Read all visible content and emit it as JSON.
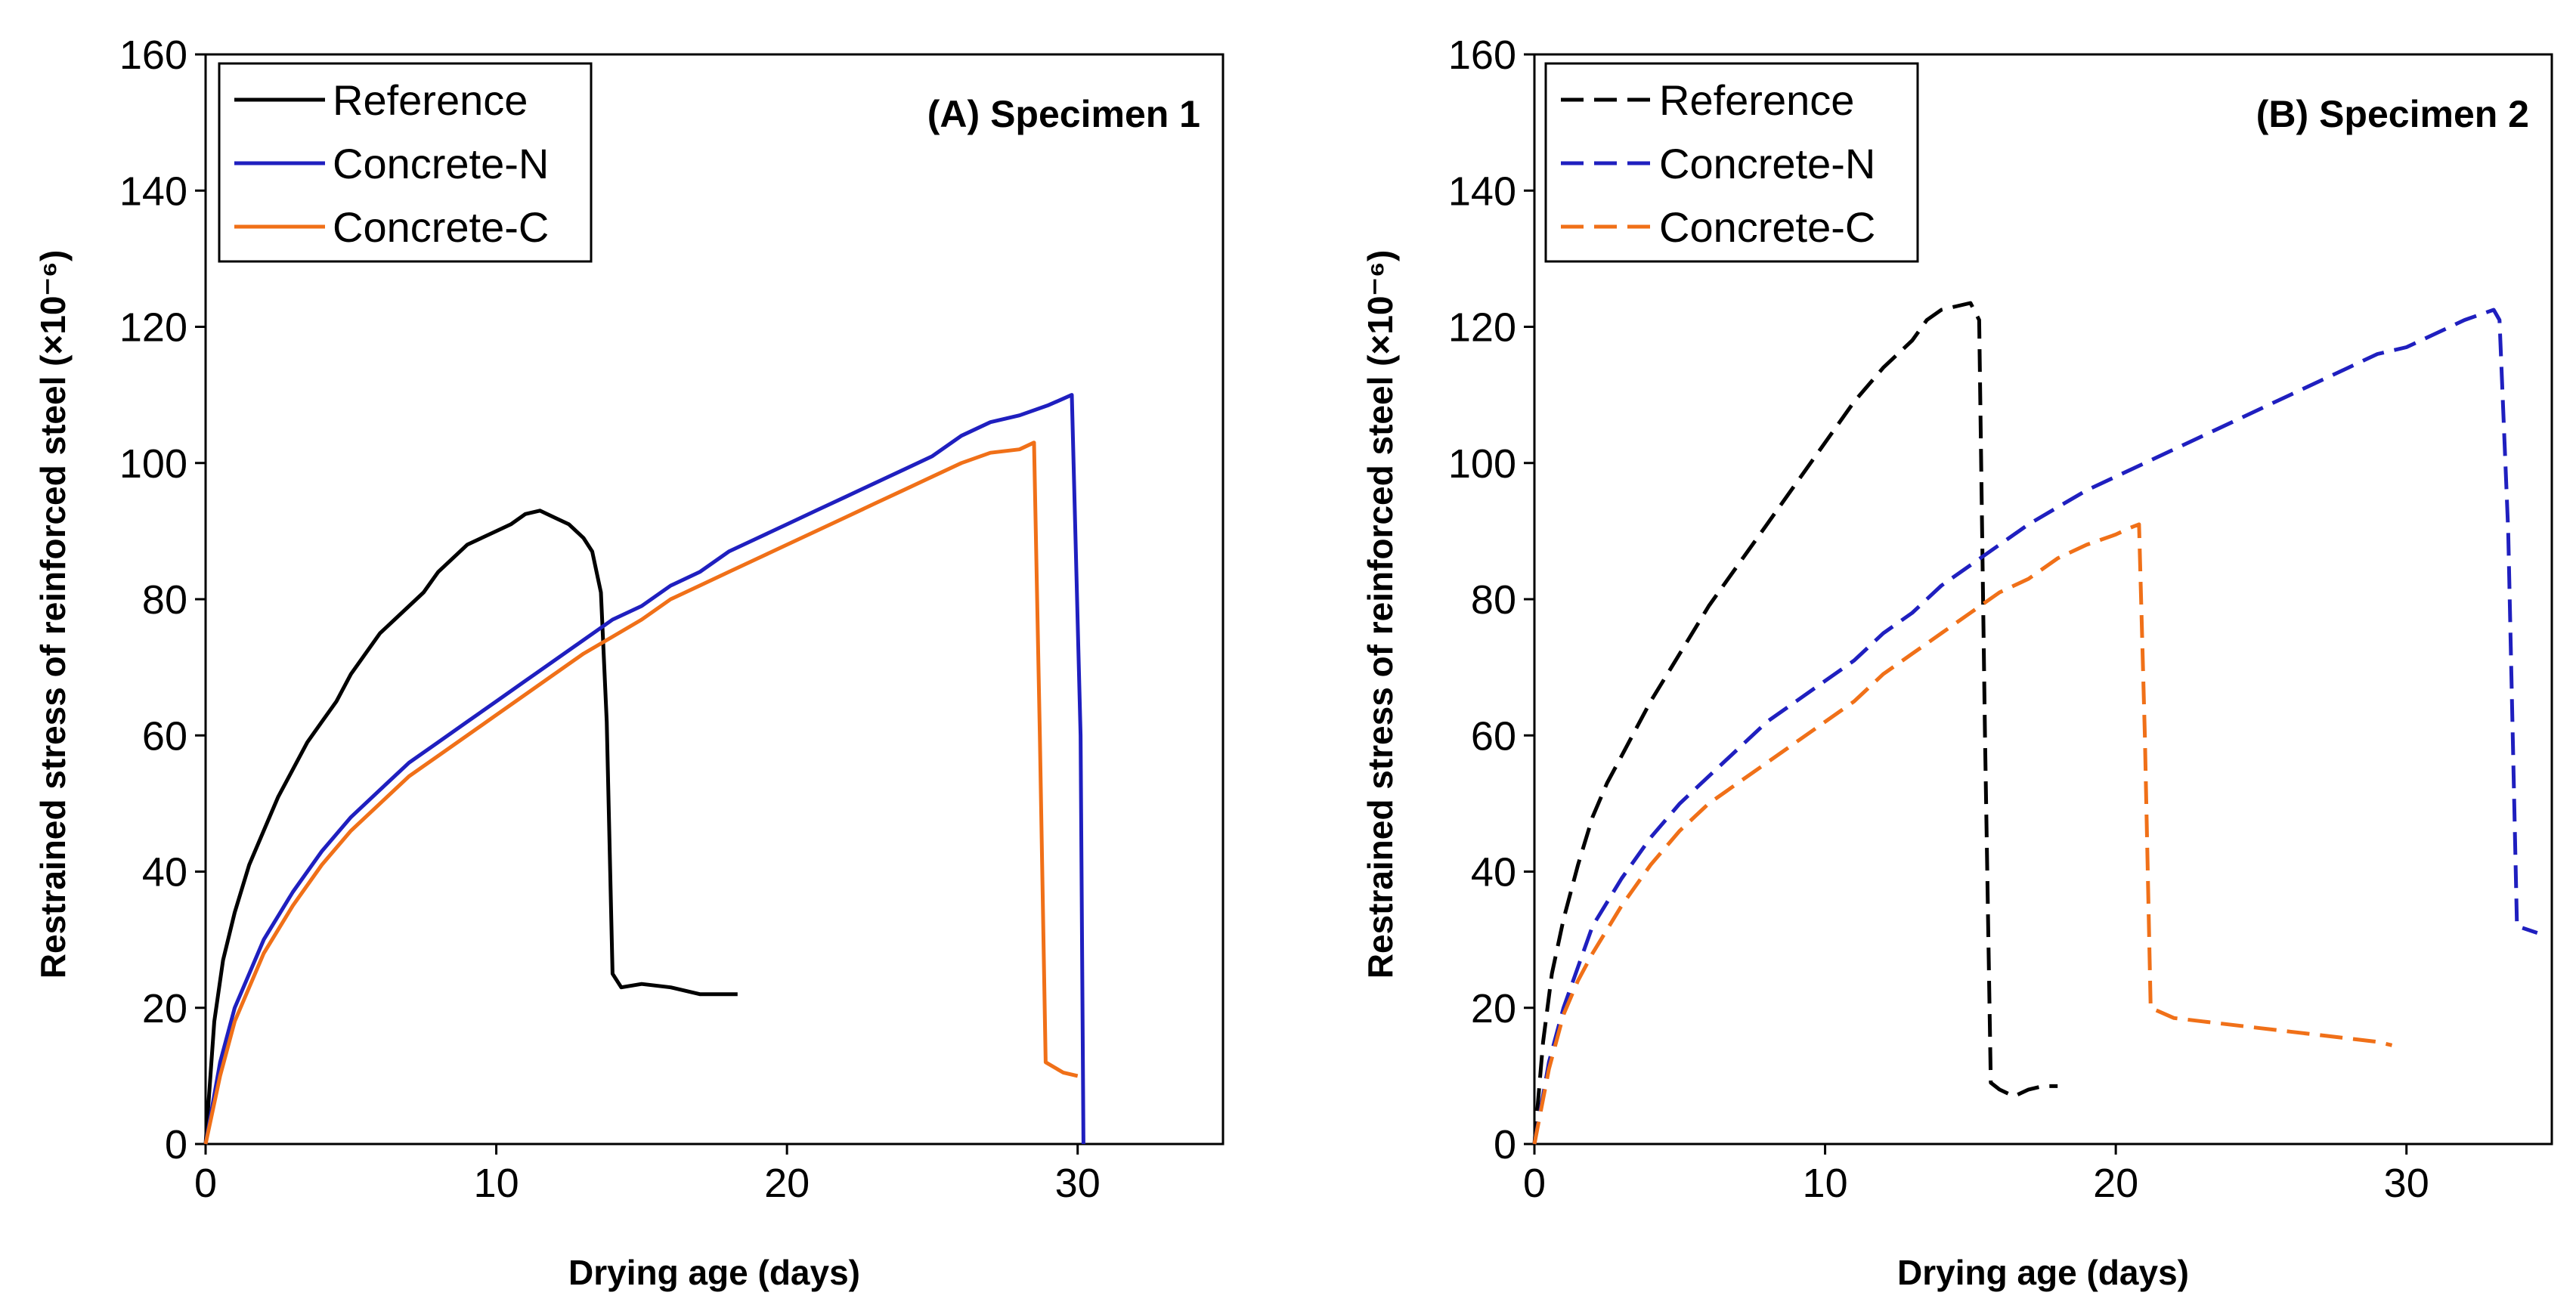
{
  "chart_data": [
    {
      "type": "line",
      "title": "(A) Specimen 1",
      "xlabel": "Drying age (days)",
      "ylabel": "Restrained stress of reinforced steel (×10⁻⁶)",
      "xlim": [
        0,
        35
      ],
      "ylim": [
        0,
        160
      ],
      "xticks": [
        0,
        10,
        20,
        30
      ],
      "yticks": [
        0,
        20,
        40,
        60,
        80,
        100,
        120,
        140,
        160
      ],
      "line_style": "solid",
      "series": [
        {
          "name": "Reference",
          "color": "#000000",
          "x": [
            0,
            0.3,
            0.6,
            1,
            1.5,
            2,
            2.5,
            3,
            3.5,
            4,
            4.5,
            5,
            5.5,
            6,
            6.5,
            7,
            7.5,
            8,
            8.5,
            9,
            9.5,
            10,
            10.5,
            11,
            11.5,
            12,
            12.5,
            13,
            13.3,
            13.6,
            13.8,
            14,
            14.3,
            15,
            16,
            17,
            18,
            18.3
          ],
          "y": [
            0,
            18,
            27,
            34,
            41,
            46,
            51,
            55,
            59,
            62,
            65,
            69,
            72,
            75,
            77,
            79,
            81,
            84,
            86,
            88,
            89,
            90,
            91,
            92.5,
            93,
            92,
            91,
            89,
            87,
            81,
            62,
            25,
            23,
            23.5,
            23,
            22,
            22,
            22
          ]
        },
        {
          "name": "Concrete-N",
          "color": "#1f1fbf",
          "x": [
            0,
            0.5,
            1,
            1.5,
            2,
            3,
            4,
            5,
            6,
            7,
            8,
            9,
            10,
            11,
            12,
            13,
            14,
            15,
            16,
            17,
            18,
            19,
            20,
            21,
            22,
            23,
            24,
            25,
            26,
            27,
            28,
            29,
            29.8,
            30.1,
            30.2
          ],
          "y": [
            0,
            12,
            20,
            25,
            30,
            37,
            43,
            48,
            52,
            56,
            59,
            62,
            65,
            68,
            71,
            74,
            77,
            79,
            82,
            84,
            87,
            89,
            91,
            93,
            95,
            97,
            99,
            101,
            104,
            106,
            107,
            108.5,
            110,
            60,
            0
          ]
        },
        {
          "name": "Concrete-C",
          "color": "#f07018",
          "x": [
            0,
            0.5,
            1,
            1.5,
            2,
            3,
            4,
            5,
            6,
            7,
            8,
            9,
            10,
            11,
            12,
            13,
            14,
            15,
            16,
            17,
            18,
            19,
            20,
            21,
            22,
            23,
            24,
            25,
            26,
            27,
            28,
            28.5,
            28.7,
            28.9,
            29.5,
            30
          ],
          "y": [
            0,
            10,
            18,
            23,
            28,
            35,
            41,
            46,
            50,
            54,
            57,
            60,
            63,
            66,
            69,
            72,
            74.5,
            77,
            80,
            82,
            84,
            86,
            88,
            90,
            92,
            94,
            96,
            98,
            100,
            101.5,
            102,
            103,
            60,
            12,
            10.5,
            10
          ]
        }
      ]
    },
    {
      "type": "line",
      "title": "(B) Specimen 2",
      "xlabel": "Drying age (days)",
      "ylabel": "Restrained stress of reinforced steel (×10⁻⁶)",
      "xlim": [
        0,
        35
      ],
      "ylim": [
        0,
        160
      ],
      "xticks": [
        0,
        10,
        20,
        30
      ],
      "yticks": [
        0,
        20,
        40,
        60,
        80,
        100,
        120,
        140,
        160
      ],
      "line_style": "dashed",
      "series": [
        {
          "name": "Reference",
          "color": "#000000",
          "x": [
            0,
            0.3,
            0.6,
            1,
            1.5,
            2,
            2.5,
            3,
            3.5,
            4,
            5,
            6,
            7,
            8,
            9,
            10,
            11,
            12,
            13,
            13.5,
            14,
            14.5,
            15,
            15.3,
            15.5,
            15.7,
            16,
            16.5,
            17,
            17.5,
            18
          ],
          "y": [
            0,
            15,
            25,
            33,
            41,
            48,
            53,
            57,
            61,
            65,
            72,
            79,
            85,
            91,
            97,
            103,
            109,
            114,
            118,
            121,
            122.5,
            123,
            123.5,
            121,
            60,
            9,
            8,
            7,
            8,
            8.5,
            8.5
          ]
        },
        {
          "name": "Concrete-N",
          "color": "#1f1fbf",
          "x": [
            0,
            0.5,
            1,
            1.5,
            2,
            3,
            4,
            5,
            6,
            7,
            8,
            9,
            10,
            11,
            12,
            13,
            14,
            15,
            16,
            17,
            18,
            19,
            20,
            21,
            22,
            23,
            24,
            25,
            26,
            27,
            28,
            29,
            30,
            31,
            32,
            33,
            33.2,
            33.5,
            33.8,
            34.5
          ],
          "y": [
            0,
            12,
            20,
            26,
            32,
            39,
            45,
            50,
            54,
            58,
            62,
            65,
            68,
            71,
            75,
            78,
            82,
            85,
            88,
            91,
            93.5,
            96,
            98,
            100,
            102,
            104,
            106,
            108,
            110,
            112,
            114,
            116,
            117,
            119,
            121,
            122.5,
            121,
            90,
            32,
            31
          ]
        },
        {
          "name": "Concrete-C",
          "color": "#f07018",
          "x": [
            0,
            0.5,
            1,
            1.5,
            2,
            3,
            4,
            5,
            6,
            7,
            8,
            9,
            10,
            11,
            12,
            13,
            14,
            15,
            16,
            17,
            18,
            19,
            20,
            20.5,
            20.8,
            21,
            21.2,
            22,
            23,
            24,
            25,
            26,
            27,
            28,
            29,
            29.5
          ],
          "y": [
            0,
            11,
            19,
            24,
            28,
            35,
            41,
            46,
            50,
            53,
            56,
            59,
            62,
            65,
            69,
            72,
            75,
            78,
            81,
            83,
            86,
            88,
            89.5,
            90.5,
            91,
            60,
            20,
            18.5,
            18,
            17.5,
            17,
            16.5,
            16,
            15.5,
            15,
            14.5
          ]
        }
      ]
    }
  ]
}
